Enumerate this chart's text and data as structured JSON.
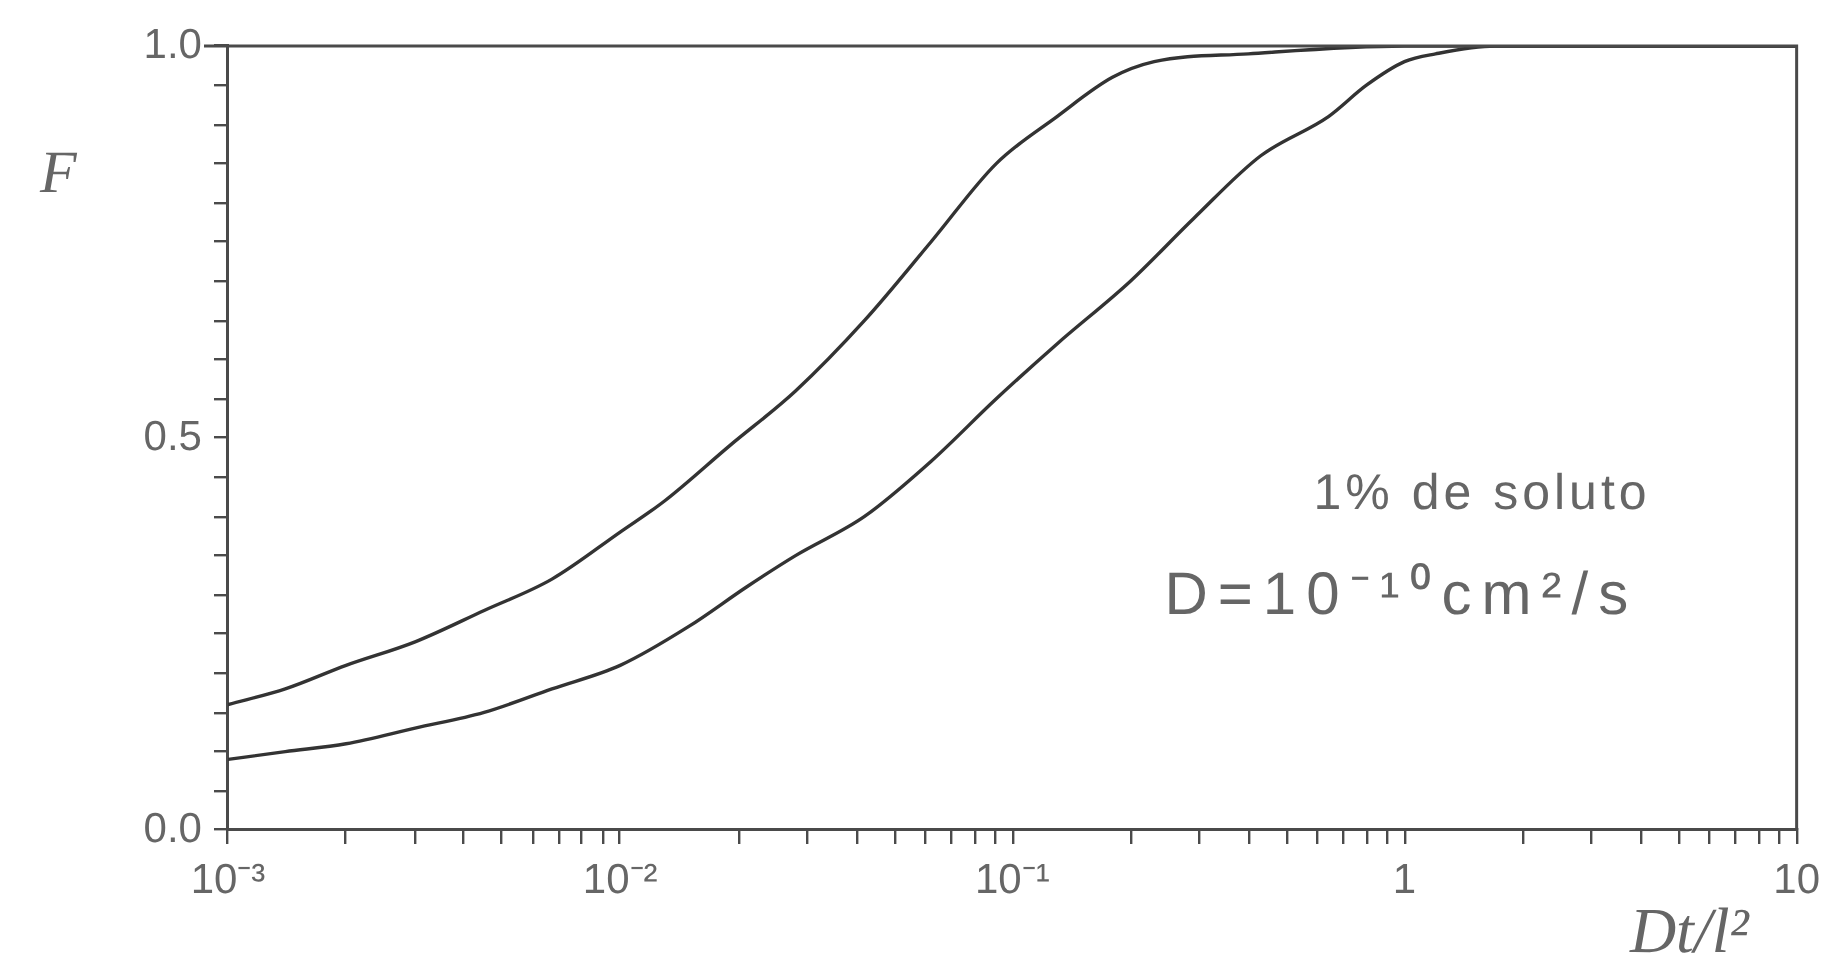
{
  "chart_data": {
    "type": "line",
    "xlabel": "Dt/l²",
    "ylabel": "F",
    "log": "x",
    "marker": "none",
    "line_style": "solid",
    "annotations": [
      "1% de soluto",
      "D=10⁻¹⁰cm²/s"
    ],
    "xlim": [
      0.001,
      10
    ],
    "xticks": [
      {
        "value": 0.001,
        "label": "10⁻³"
      },
      {
        "value": 0.002,
        "label": null
      },
      {
        "value": 0.003,
        "label": null
      },
      {
        "value": 0.004,
        "label": null
      },
      {
        "value": 0.005,
        "label": null
      },
      {
        "value": 0.006,
        "label": null
      },
      {
        "value": 0.007,
        "label": null
      },
      {
        "value": 0.008,
        "label": null
      },
      {
        "value": 0.009,
        "label": null
      },
      {
        "value": 0.01,
        "label": "10⁻²"
      },
      {
        "value": 0.02,
        "label": null
      },
      {
        "value": 0.03,
        "label": null
      },
      {
        "value": 0.04,
        "label": null
      },
      {
        "value": 0.05,
        "label": null
      },
      {
        "value": 0.06,
        "label": null
      },
      {
        "value": 0.07,
        "label": null
      },
      {
        "value": 0.08,
        "label": null
      },
      {
        "value": 0.09,
        "label": null
      },
      {
        "value": 0.1,
        "label": "10⁻¹"
      },
      {
        "value": 0.2,
        "label": null
      },
      {
        "value": 0.3,
        "label": null
      },
      {
        "value": 0.4,
        "label": null
      },
      {
        "value": 0.5,
        "label": null
      },
      {
        "value": 0.6,
        "label": null
      },
      {
        "value": 0.7,
        "label": null
      },
      {
        "value": 0.8,
        "label": null
      },
      {
        "value": 0.9,
        "label": null
      },
      1,
      {
        "value": 2,
        "label": null
      },
      {
        "value": 3,
        "label": null
      },
      {
        "value": 4,
        "label": null
      },
      {
        "value": 5,
        "label": null
      },
      {
        "value": 6,
        "label": null
      },
      {
        "value": 7,
        "label": null
      },
      {
        "value": 8,
        "label": null
      },
      {
        "value": 9,
        "label": null
      },
      10
    ],
    "ylim": [
      0,
      1
    ],
    "yticks": [
      {
        "value": 0,
        "label": "0.0"
      },
      {
        "value": 0.05,
        "label": null
      },
      {
        "value": 0.1,
        "label": null
      },
      {
        "value": 0.15,
        "label": null
      },
      {
        "value": 0.2,
        "label": null
      },
      {
        "value": 0.25,
        "label": null
      },
      {
        "value": 0.3,
        "label": null
      },
      {
        "value": 0.35,
        "label": null
      },
      {
        "value": 0.4,
        "label": null
      },
      {
        "value": 0.45,
        "label": null
      },
      0.5,
      {
        "value": 0.55,
        "label": null
      },
      {
        "value": 0.6,
        "label": null
      },
      {
        "value": 0.65,
        "label": null
      },
      {
        "value": 0.7,
        "label": null
      },
      {
        "value": 0.75,
        "label": null
      },
      {
        "value": 0.8,
        "label": null
      },
      {
        "value": 0.85,
        "label": null
      },
      {
        "value": 0.9,
        "label": null
      },
      {
        "value": 0.95,
        "label": null
      },
      {
        "value": 1,
        "label": "1.0"
      }
    ],
    "series": [
      {
        "color": "#333333",
        "x": [
          0.001,
          0.0014,
          0.002,
          0.003,
          0.0045,
          0.0067,
          0.01,
          0.013,
          0.019,
          0.028,
          0.042,
          0.062,
          0.091,
          0.13,
          0.18,
          0.23,
          0.4,
          1,
          10
        ],
        "values": [
          0.16,
          0.18,
          0.21,
          0.24,
          0.28,
          0.32,
          0.38,
          0.42,
          0.49,
          0.56,
          0.65,
          0.75,
          0.85,
          0.91,
          0.96,
          0.98,
          0.99,
          1,
          1
        ]
      },
      {
        "color": "#333333",
        "x": [
          0.001,
          0.0014,
          0.002,
          0.003,
          0.0045,
          0.0067,
          0.01,
          0.015,
          0.021,
          0.028,
          0.042,
          0.062,
          0.091,
          0.13,
          0.2,
          0.29,
          0.43,
          0.64,
          0.8,
          1,
          1.2,
          1.7,
          10
        ],
        "values": [
          0.09,
          0.1,
          0.11,
          0.13,
          0.15,
          0.18,
          0.21,
          0.26,
          0.31,
          0.35,
          0.4,
          0.47,
          0.55,
          0.62,
          0.7,
          0.78,
          0.86,
          0.91,
          0.95,
          0.98,
          0.99,
          1,
          1
        ]
      }
    ]
  }
}
